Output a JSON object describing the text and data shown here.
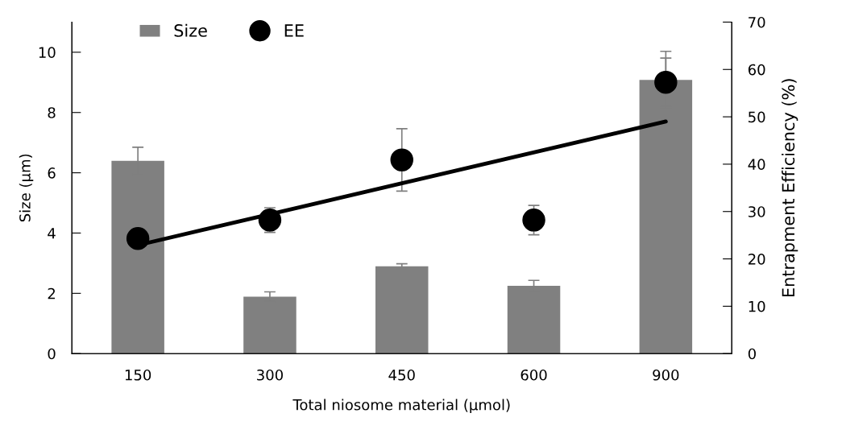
{
  "chart_data": {
    "type": "bar",
    "xlabel": "Total niosome material (µmol)",
    "ylabel": "Size (µm)",
    "y2label": "Entrapment Efficiency (%)",
    "categories": [
      "150",
      "300",
      "450",
      "600",
      "900"
    ],
    "series": [
      {
        "name": "Size",
        "color": "#808080",
        "values": [
          6.4,
          1.89,
          2.9,
          2.25,
          9.08
        ],
        "errors": [
          0.45,
          0.16,
          0.08,
          0.18,
          0.95
        ]
      },
      {
        "name": "EE",
        "type": "scatter",
        "axis": "y2",
        "color": "#000000",
        "marker": "circle",
        "x": [
          "150",
          "300",
          "450",
          "600",
          "900"
        ],
        "values": [
          24.3,
          28.2,
          40.9,
          28.2,
          57.3
        ],
        "errors": [
          null,
          2.6,
          6.6,
          3.1,
          5.1
        ]
      },
      {
        "type": "line",
        "axis": "y2",
        "color": "#000000",
        "x": [
          "150",
          "900"
        ],
        "values": [
          22.9,
          49.0
        ]
      }
    ],
    "ylim": [
      0,
      11
    ],
    "yticks": [
      0,
      2,
      4,
      6,
      8,
      10
    ],
    "y2lim": [
      0,
      70
    ],
    "y2ticks": [
      0,
      10,
      20,
      30,
      40,
      50,
      60,
      70
    ],
    "grid": false,
    "legend": "top left"
  }
}
